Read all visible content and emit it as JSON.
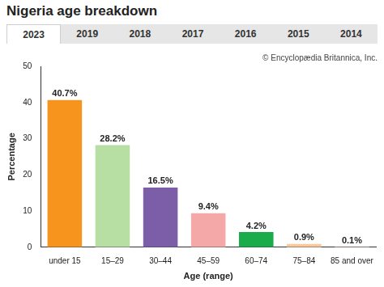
{
  "tabs": [
    "2023",
    "2019",
    "2018",
    "2017",
    "2016",
    "2015",
    "2014"
  ],
  "chart_data": {
    "type": "bar",
    "title": "Nigeria age breakdown",
    "annotations": [
      "© Encyclopædia Britannica, Inc."
    ],
    "x_label": "Age (range)",
    "y_label": "Percentage",
    "categories": [
      "under 15",
      "15–29",
      "30–44",
      "45–59",
      "60–74",
      "75–84",
      "85 and over"
    ],
    "values": [
      40.7,
      28.2,
      16.5,
      9.4,
      4.2,
      0.9,
      0.1
    ],
    "value_labels": [
      "40.7%",
      "28.2%",
      "16.5%",
      "9.4%",
      "4.2%",
      "0.9%",
      "0.1%"
    ],
    "colors": [
      "#f7941d",
      "#b7dea3",
      "#7b5ea7",
      "#f5a8a8",
      "#1aab4b",
      "#f9c89b",
      "#fbd9cc"
    ],
    "ylim": [
      0,
      50
    ],
    "yticks": [
      0,
      10,
      20,
      30,
      40,
      50
    ],
    "grid": false,
    "data_labels": true
  }
}
